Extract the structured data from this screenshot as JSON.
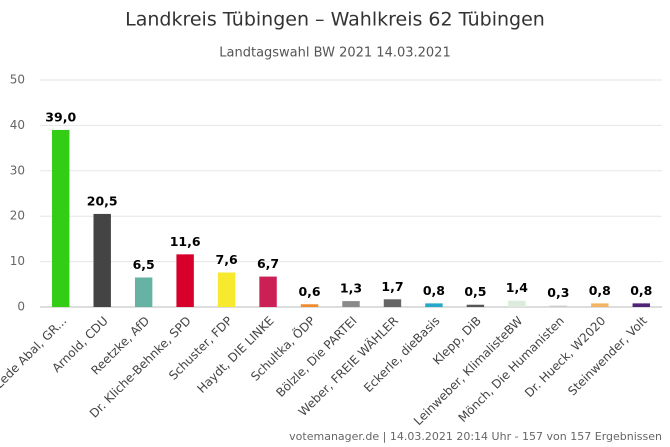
{
  "chart_data": {
    "type": "bar",
    "title": "Landkreis Tübingen – Wahlkreis 62 Tübingen",
    "subtitle": "Landtagswahl BW 2021 14.03.2021",
    "categories": [
      "Lede Abal, GR...",
      "Arnold, CDU",
      "Reetzke, AfD",
      "Dr. Kliche-Behnke, SPD",
      "Schuster, FDP",
      "Haydt, DIE LINKE",
      "Schultka, ÖDP",
      "Bölzle, Die PARTEI",
      "Weber, FREIE WÄHLER",
      "Eckerle, dieBasis",
      "Klepp, DiB",
      "Leinweber, KlimalisteBW",
      "Mönch, Die Humanisten",
      "Dr. Hueck, W2020",
      "Steinwender, Volt"
    ],
    "values": [
      39.0,
      20.5,
      6.5,
      11.6,
      7.6,
      6.7,
      0.6,
      1.3,
      1.7,
      0.8,
      0.5,
      1.4,
      0.3,
      0.8,
      0.8
    ],
    "value_labels": [
      "39,0",
      "20,5",
      "6,5",
      "11,6",
      "7,6",
      "6,7",
      "0,6",
      "1,3",
      "1,7",
      "0,8",
      "0,5",
      "1,4",
      "0,3",
      "0,8",
      "0,8"
    ],
    "colors": [
      "#32cd14",
      "#444444",
      "#66b3a3",
      "#d7002b",
      "#f7e92e",
      "#cc1f56",
      "#f08a2b",
      "#8a8a8a",
      "#666666",
      "#26a9c9",
      "#555555",
      "#dcebdc",
      "#cccccc",
      "#f2b563",
      "#502379"
    ],
    "ylim": [
      0,
      50
    ],
    "yticks": [
      0,
      10,
      20,
      30,
      40,
      50
    ],
    "grid": true,
    "footer": "votemanager.de | 14.03.2021 20:14 Uhr - 157 von 157 Ergebnissen"
  }
}
